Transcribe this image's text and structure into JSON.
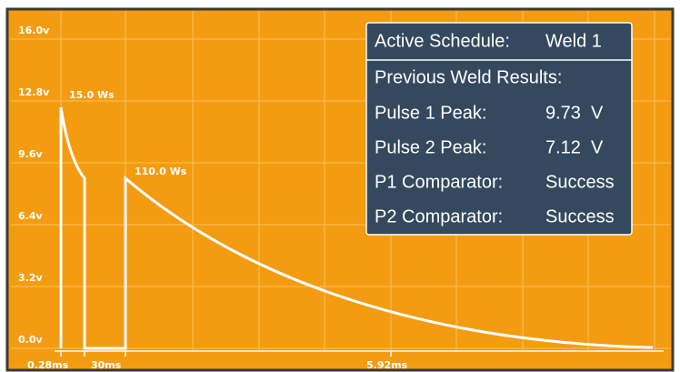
{
  "screen": {
    "y_axis": {
      "ylim": [
        0,
        16
      ],
      "ticks": [
        {
          "value": 16,
          "label": "16.0v"
        },
        {
          "value": 12.8,
          "label": "12.8v"
        },
        {
          "value": 9.6,
          "label": "9.6v"
        },
        {
          "value": 6.4,
          "label": "6.4v"
        },
        {
          "value": 3.2,
          "label": "3.2v"
        },
        {
          "value": 0,
          "label": "0.0v"
        }
      ]
    },
    "annotations": [
      "15.0 Ws",
      "110.0 Ws"
    ],
    "x_labels": [
      "0.28ms",
      "30ms",
      "5.92ms"
    ],
    "panel": {
      "schedule_label": "Active Schedule:",
      "schedule": "Weld 1",
      "results_title": "Previous Weld Results:",
      "rows": [
        {
          "label": "Pulse 1 Peak:",
          "value": "9.73  V"
        },
        {
          "label": "Pulse 2 Peak:",
          "value": "7.12  V"
        },
        {
          "label": "P1 Comparator:",
          "value": "Success"
        },
        {
          "label": "P2 Comparator:",
          "value": "Success"
        }
      ]
    }
  }
}
